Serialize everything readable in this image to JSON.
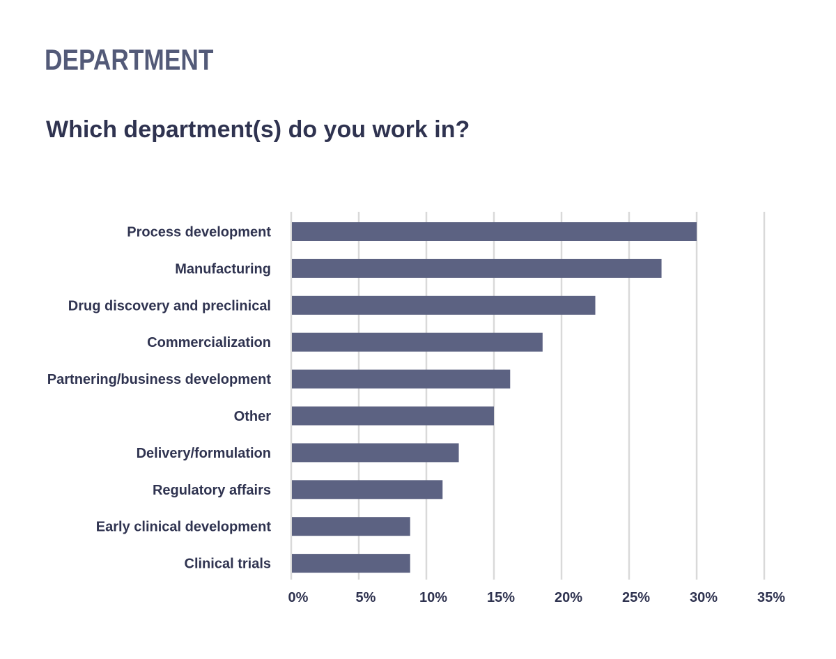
{
  "header": {
    "section": "DEPARTMENT",
    "question": "Which department(s) do you work in?"
  },
  "colors": {
    "bar": "#5c6282",
    "text": "#2f3350",
    "title": "#535a78",
    "grid": "#d9d9d9"
  },
  "chart_data": {
    "type": "bar",
    "orientation": "horizontal",
    "title": "Which department(s) do you work in?",
    "xlabel": "",
    "ylabel": "",
    "categories": [
      "Process development",
      "Manufacturing",
      "Drug discovery and preclinical",
      "Commercialization",
      "Partnering/business development",
      "Other",
      "Delivery/formulation",
      "Regulatory affairs",
      "Early clinical development",
      "Clinical trials"
    ],
    "values": [
      30.0,
      27.4,
      22.5,
      18.6,
      16.2,
      15.0,
      12.4,
      11.2,
      8.8,
      8.8
    ],
    "xlim": [
      0,
      35
    ],
    "ticks": [
      0,
      5,
      10,
      15,
      20,
      25,
      30,
      35
    ],
    "tick_labels": [
      "0%",
      "5%",
      "10%",
      "15%",
      "20%",
      "25%",
      "30%",
      "35%"
    ],
    "grid": "vertical",
    "legend": "none"
  }
}
